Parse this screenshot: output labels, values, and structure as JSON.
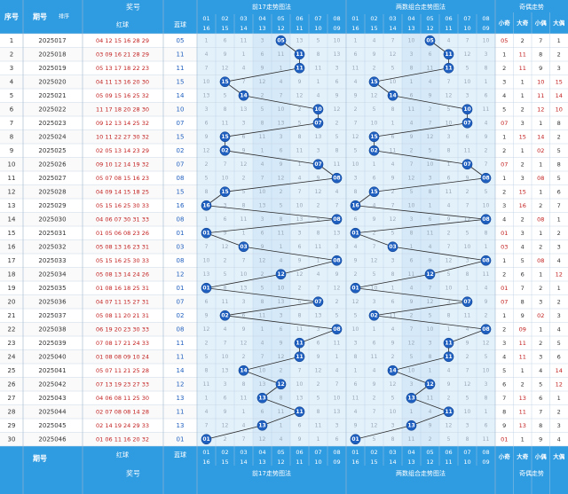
{
  "header": {
    "index_label": "序号",
    "issue_label": "期号",
    "small_label": "排序",
    "prize_label": "奖号",
    "red_label": "红球",
    "blue_label": "蓝球",
    "trend1_label": "前17走势图法",
    "trend2_label": "两数组合走势图法",
    "parity_label": "奇偶走势",
    "col_a": [
      "01",
      "02",
      "03",
      "04",
      "05",
      "06",
      "07",
      "08"
    ],
    "col_b": [
      "16",
      "15",
      "14",
      "13",
      "12",
      "11",
      "10",
      "09"
    ],
    "parity": [
      "小奇",
      "大奇",
      "小偶",
      "大偶"
    ]
  },
  "footer": {
    "issue_label": "期号",
    "red_label": "红球",
    "blue_label": "蓝球",
    "prize_label": "奖号",
    "trend1_label": "前17走势图法",
    "trend2_label": "两数组合走势图法",
    "parity_label": "奇偶走势"
  },
  "rows": [
    {
      "n": "1",
      "issue": "2025017",
      "red": "04 12 15 16 28 29",
      "blue": "05",
      "p1": 5,
      "p2": 5
    },
    {
      "n": "2",
      "issue": "2025018",
      "red": "03 09 16 21 28 29",
      "blue": "11",
      "p1": 11,
      "p2": 11
    },
    {
      "n": "3",
      "issue": "2025019",
      "red": "05 13 17 18 22 23",
      "blue": "11",
      "p1": 11,
      "p2": 11
    },
    {
      "n": "4",
      "issue": "2025020",
      "red": "04 11 13 16 20 30",
      "blue": "15",
      "p1": 15,
      "p2": 15
    },
    {
      "n": "5",
      "issue": "2025021",
      "red": "05 09 15 16 25 32",
      "blue": "14",
      "p1": 14,
      "p2": 14
    },
    {
      "n": "6",
      "issue": "2025022",
      "red": "11 17 18 20 28 30",
      "blue": "10",
      "p1": 10,
      "p2": 10
    },
    {
      "n": "7",
      "issue": "2025023",
      "red": "09 12 13 14 25 32",
      "blue": "07",
      "p1": 7,
      "p2": 7
    },
    {
      "n": "8",
      "issue": "2025024",
      "red": "10 11 22 27 30 32",
      "blue": "15",
      "p1": 15,
      "p2": 15
    },
    {
      "n": "9",
      "issue": "2025025",
      "red": "02 05 13 14 23 29",
      "blue": "02",
      "p1": 2,
      "p2": 2
    },
    {
      "n": "10",
      "issue": "2025026",
      "red": "09 10 12 14 19 32",
      "blue": "07",
      "p1": 7,
      "p2": 7
    },
    {
      "n": "11",
      "issue": "2025027",
      "red": "05 07 08 15 16 23",
      "blue": "08",
      "p1": 8,
      "p2": 8
    },
    {
      "n": "12",
      "issue": "2025028",
      "red": "04 09 14 15 18 25",
      "blue": "15",
      "p1": 15,
      "p2": 15
    },
    {
      "n": "13",
      "issue": "2025029",
      "red": "05 15 16 25 30 33",
      "blue": "16",
      "p1": 16,
      "p2": 16
    },
    {
      "n": "14",
      "issue": "2025030",
      "red": "04 06 07 30 31 33",
      "blue": "08",
      "p1": 8,
      "p2": 8
    },
    {
      "n": "15",
      "issue": "2025031",
      "red": "01 05 06 08 23 26",
      "blue": "01",
      "p1": 1,
      "p2": 1
    },
    {
      "n": "16",
      "issue": "2025032",
      "red": "05 08 13 16 23 31",
      "blue": "03",
      "p1": 3,
      "p2": 3
    },
    {
      "n": "17",
      "issue": "2025033",
      "red": "05 15 16 25 30 33",
      "blue": "08",
      "p1": 8,
      "p2": 8
    },
    {
      "n": "18",
      "issue": "2025034",
      "red": "05 08 13 14 24 26",
      "blue": "12",
      "p1": 12,
      "p2": 12
    },
    {
      "n": "19",
      "issue": "2025035",
      "red": "01 08 16 18 25 31",
      "blue": "01",
      "p1": 1,
      "p2": 1
    },
    {
      "n": "20",
      "issue": "2025036",
      "red": "04 07 11 15 27 31",
      "blue": "07",
      "p1": 7,
      "p2": 7
    },
    {
      "n": "21",
      "issue": "2025037",
      "red": "05 08 11 20 21 31",
      "blue": "02",
      "p1": 2,
      "p2": 2
    },
    {
      "n": "22",
      "issue": "2025038",
      "red": "06 19 20 23 30 33",
      "blue": "08",
      "p1": 8,
      "p2": 8
    },
    {
      "n": "23",
      "issue": "2025039",
      "red": "07 08 17 21 24 33",
      "blue": "11",
      "p1": 11,
      "p2": 11
    },
    {
      "n": "24",
      "issue": "2025040",
      "red": "01 08 08 09 10 24",
      "blue": "11",
      "p1": 11,
      "p2": 11
    },
    {
      "n": "25",
      "issue": "2025041",
      "red": "05 07 11 21 25 28",
      "blue": "14",
      "p1": 14,
      "p2": 14
    },
    {
      "n": "26",
      "issue": "2025042",
      "red": "07 13 19 23 27 33",
      "blue": "12",
      "p1": 12,
      "p2": 12
    },
    {
      "n": "27",
      "issue": "2025043",
      "red": "04 06 08 11 25 30",
      "blue": "13",
      "p1": 13,
      "p2": 13
    },
    {
      "n": "28",
      "issue": "2025044",
      "red": "02 07 08 08 14 28",
      "blue": "11",
      "p1": 11,
      "p2": 11
    },
    {
      "n": "29",
      "issue": "2025045",
      "red": "02 14 19 24 29 33",
      "blue": "13",
      "p1": 13,
      "p2": 13
    },
    {
      "n": "30",
      "issue": "2025046",
      "red": "01 06 11 16 20 32",
      "blue": "01",
      "p1": 1,
      "p2": 1
    }
  ],
  "parity_rows": [
    [
      "05",
      "2",
      "7",
      "1"
    ],
    [
      "1",
      "11",
      "8",
      "2"
    ],
    [
      "2",
      "11",
      "9",
      "3"
    ],
    [
      "3",
      "1",
      "10",
      "15"
    ],
    [
      "4",
      "1",
      "11",
      "14"
    ],
    [
      "5",
      "2",
      "12",
      "10"
    ],
    [
      "07",
      "3",
      "1",
      "8"
    ],
    [
      "1",
      "15",
      "14",
      "2"
    ],
    [
      "2",
      "1",
      "02",
      "5"
    ],
    [
      "07",
      "2",
      "1",
      "8"
    ],
    [
      "1",
      "3",
      "08",
      "5"
    ],
    [
      "2",
      "15",
      "1",
      "6"
    ],
    [
      "3",
      "16",
      "2",
      "7"
    ],
    [
      "4",
      "2",
      "08",
      "1"
    ],
    [
      "01",
      "3",
      "1",
      "2"
    ],
    [
      "03",
      "4",
      "2",
      "3"
    ],
    [
      "1",
      "5",
      "08",
      "4"
    ],
    [
      "2",
      "6",
      "1",
      "12"
    ],
    [
      "01",
      "7",
      "2",
      "1"
    ],
    [
      "07",
      "8",
      "3",
      "2"
    ],
    [
      "1",
      "9",
      "02",
      "3"
    ],
    [
      "2",
      "09",
      "1",
      "4"
    ],
    [
      "3",
      "11",
      "2",
      "5"
    ],
    [
      "4",
      "11",
      "3",
      "6"
    ],
    [
      "5",
      "1",
      "4",
      "14"
    ],
    [
      "6",
      "2",
      "5",
      "12"
    ],
    [
      "7",
      "13",
      "6",
      "1"
    ],
    [
      "8",
      "11",
      "7",
      "2"
    ],
    [
      "9",
      "13",
      "8",
      "3"
    ],
    [
      "01",
      "1",
      "9",
      "4"
    ]
  ],
  "colors": {
    "header_bg": "#2f9be0",
    "header_text": "#ffffff",
    "left_bg": "#fdecec",
    "left_alt": "#f7f7f7",
    "zone_bg": "#cfe6f7",
    "zone_light": "#e3f1fb",
    "ball": "#1f5fbf",
    "ball_text": "#ffffff",
    "line": "#2b2b2b",
    "red_text": "#c21d1d"
  }
}
